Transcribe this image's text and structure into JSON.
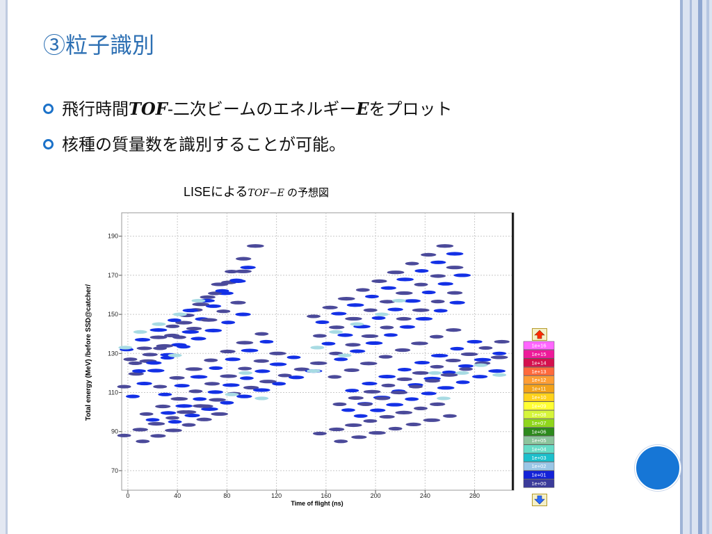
{
  "slide": {
    "title": "③粒子識別",
    "bullets": [
      {
        "pre": "飛行時間",
        "em1": "TOF",
        "mid": "-二次ビームのエネルギー",
        "em2": "E",
        "post": "をプロット"
      },
      {
        "pre": "核種の質量数を識別することが可能。"
      }
    ],
    "caption": {
      "label": "LISEによる",
      "italic": "TOF−E",
      "rest": "の予想図"
    }
  },
  "colors": {
    "title": "#2c6fb3",
    "bullet": "#1c72c9",
    "accent_circle": "#1676d6",
    "blob_dark": "#4b4a9a",
    "blob_blue": "#1330e6",
    "blob_light": "#a8dbe3"
  },
  "chart_data": {
    "type": "scatter",
    "xlabel": "Time of flight (ns)",
    "ylabel": "Total energy (MeV) /before SSD@catcher/",
    "xlim": [
      -5,
      310
    ],
    "ylim": [
      60,
      202
    ],
    "xticks": [
      0,
      40,
      80,
      120,
      160,
      200,
      240,
      280
    ],
    "yticks": [
      70,
      90,
      110,
      130,
      150,
      170,
      190
    ],
    "grid": true,
    "color_scale": [
      "1e+16",
      "1e+15",
      "1e+14",
      "1e+13",
      "1e+12",
      "1e+11",
      "1e+10",
      "1e+09",
      "1e+08",
      "1e+07",
      "1e+06",
      "1e+05",
      "1e+04",
      "1e+03",
      "1e+02",
      "1e+01",
      "1e+00"
    ],
    "color_scale_colors": [
      "#ff66ff",
      "#ee1a9a",
      "#d4104e",
      "#ff6a3c",
      "#ff9d33",
      "#f3a21a",
      "#ffd21a",
      "#ffff33",
      "#d6f53a",
      "#8fd61c",
      "#2d8a1c",
      "#8cc49c",
      "#66dcc6",
      "#1cc0cc",
      "#9ac6e6",
      "#1322d8",
      "#3b3b9a"
    ],
    "diagonal_bands": [
      {
        "x": [
          -3,
          103
        ],
        "y": [
          113,
          185
        ],
        "color": "dark"
      },
      {
        "x": [
          4,
          97
        ],
        "y": [
          108,
          174
        ],
        "color": "blue"
      },
      {
        "x": [
          2,
          93
        ],
        "y": [
          127,
          172
        ],
        "color": "dark"
      },
      {
        "x": [
          -1,
          89
        ],
        "y": [
          132,
          167
        ],
        "color": "blue"
      },
      {
        "x": [
          6,
          89
        ],
        "y": [
          125,
          156
        ],
        "color": "dark"
      },
      {
        "x": [
          9,
          93
        ],
        "y": [
          121,
          150
        ],
        "color": "blue"
      },
      {
        "x": [
          26,
          108
        ],
        "y": [
          113,
          140
        ],
        "color": "dark"
      },
      {
        "x": [
          30,
          112
        ],
        "y": [
          109,
          136
        ],
        "color": "blue"
      },
      {
        "x": [
          15,
          121
        ],
        "y": [
          99,
          130
        ],
        "color": "dark"
      },
      {
        "x": [
          20,
          134
        ],
        "y": [
          96,
          128
        ],
        "color": "blue"
      },
      {
        "x": [
          45,
          154
        ],
        "y": [
          100,
          125
        ],
        "color": "dark"
      },
      {
        "x": [
          38,
          150
        ],
        "y": [
          95,
          121
        ],
        "color": "blue"
      },
      {
        "x": [
          -3,
          62
        ],
        "y": [
          88,
          103
        ],
        "color": "dark"
      },
      {
        "x": [
          12,
          74
        ],
        "y": [
          85,
          99
        ],
        "color": "dark"
      },
      {
        "x": [
          150,
          256
        ],
        "y": [
          149,
          185
        ],
        "color": "dark"
      },
      {
        "x": [
          157,
          264
        ],
        "y": [
          146,
          181
        ],
        "color": "blue"
      },
      {
        "x": [
          155,
          264
        ],
        "y": [
          139,
          174
        ],
        "color": "dark"
      },
      {
        "x": [
          162,
          270
        ],
        "y": [
          135,
          170
        ],
        "color": "blue"
      },
      {
        "x": [
          168,
          264
        ],
        "y": [
          130,
          161
        ],
        "color": "dark"
      },
      {
        "x": [
          172,
          266
        ],
        "y": [
          127,
          156
        ],
        "color": "blue"
      },
      {
        "x": [
          167,
          263
        ],
        "y": [
          118,
          142
        ],
        "color": "dark"
      },
      {
        "x": [
          181,
          280
        ],
        "y": [
          111,
          136
        ],
        "color": "blue"
      },
      {
        "x": [
          171,
          302
        ],
        "y": [
          104,
          136
        ],
        "color": "dark"
      },
      {
        "x": [
          178,
          300
        ],
        "y": [
          101,
          130
        ],
        "color": "blue"
      },
      {
        "x": [
          192,
          300
        ],
        "y": [
          104,
          128
        ],
        "color": "dark"
      },
      {
        "x": [
          188,
          298
        ],
        "y": [
          98,
          121
        ],
        "color": "blue"
      },
      {
        "x": [
          155,
          250
        ],
        "y": [
          89,
          104
        ],
        "color": "dark"
      },
      {
        "x": [
          172,
          260
        ],
        "y": [
          85,
          98
        ],
        "color": "dark"
      }
    ],
    "light_points": [
      {
        "x": -2,
        "y": 133
      },
      {
        "x": 10,
        "y": 141
      },
      {
        "x": 25,
        "y": 145
      },
      {
        "x": 42,
        "y": 150
      },
      {
        "x": 57,
        "y": 157
      },
      {
        "x": 84,
        "y": 109
      },
      {
        "x": 108,
        "y": 107
      },
      {
        "x": 38,
        "y": 129
      },
      {
        "x": 95,
        "y": 120
      },
      {
        "x": 153,
        "y": 133
      },
      {
        "x": 168,
        "y": 141
      },
      {
        "x": 185,
        "y": 145
      },
      {
        "x": 205,
        "y": 150
      },
      {
        "x": 219,
        "y": 157
      },
      {
        "x": 175,
        "y": 129
      },
      {
        "x": 248,
        "y": 120
      },
      {
        "x": 270,
        "y": 120
      },
      {
        "x": 285,
        "y": 124
      },
      {
        "x": 300,
        "y": 119
      },
      {
        "x": 255,
        "y": 107
      },
      {
        "x": 150,
        "y": 121
      }
    ]
  }
}
